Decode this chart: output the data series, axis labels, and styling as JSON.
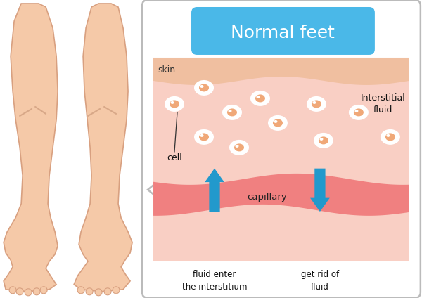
{
  "background_color": "#ffffff",
  "fig_width": 6.0,
  "fig_height": 4.24,
  "dpi": 100,
  "title_text": "Normal feet",
  "title_bg": "#4ab8e8",
  "title_fg": "#ffffff",
  "skin_label": "skin",
  "skin_top_color": "#f0bfa0",
  "skin_area_color": "#f9cfc4",
  "capillary_color": "#f08080",
  "capillary_light_color": "#f9cfc4",
  "capillary_label": "capillary",
  "cell_label": "cell",
  "interstitial_label": "Interstitial\nfluid",
  "arrow_up_label": "fluid enter\nthe interstitium",
  "arrow_down_label": "get rid of\nfluid",
  "arrow_color": "#2299cc",
  "leg_skin_color": "#f5c9a8",
  "leg_edge_color": "#d8a080",
  "leg_shadow_color": "#d8a888",
  "box_edge_color": "#bbbbbb",
  "box_face_color": "#ffffff"
}
